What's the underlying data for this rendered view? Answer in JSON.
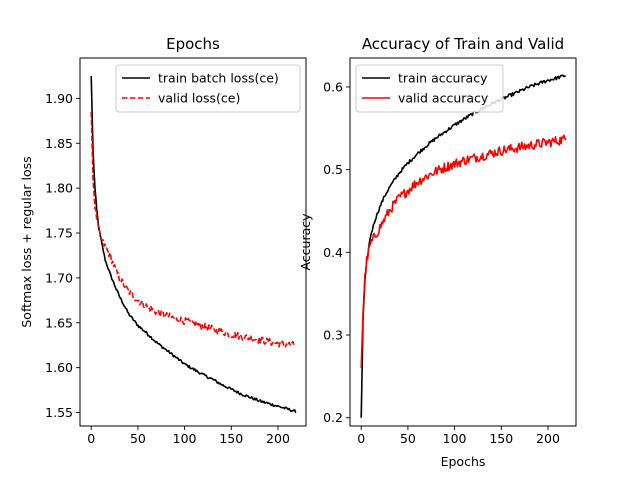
{
  "chart_data": [
    {
      "type": "line",
      "title": "Epochs",
      "xlabel": "",
      "ylabel": "Softmax loss + regular loss",
      "xlim": [
        -12,
        230
      ],
      "ylim": [
        1.535,
        1.945
      ],
      "xticks": [
        0,
        50,
        100,
        150,
        200
      ],
      "yticks": [
        1.55,
        1.6,
        1.65,
        1.7,
        1.75,
        1.8,
        1.85,
        1.9
      ],
      "legend_position": "top-right",
      "series": [
        {
          "name": "train batch loss(ce)",
          "color": "#000000",
          "dash": "solid",
          "points": [
            [
              0,
              1.925
            ],
            [
              2,
              1.84
            ],
            [
              4,
              1.8
            ],
            [
              6,
              1.775
            ],
            [
              8,
              1.757
            ],
            [
              10,
              1.745
            ],
            [
              15,
              1.72
            ],
            [
              20,
              1.705
            ],
            [
              25,
              1.692
            ],
            [
              30,
              1.68
            ],
            [
              40,
              1.66
            ],
            [
              50,
              1.647
            ],
            [
              60,
              1.638
            ],
            [
              70,
              1.628
            ],
            [
              80,
              1.62
            ],
            [
              90,
              1.612
            ],
            [
              100,
              1.604
            ],
            [
              110,
              1.598
            ],
            [
              120,
              1.592
            ],
            [
              130,
              1.587
            ],
            [
              140,
              1.581
            ],
            [
              150,
              1.576
            ],
            [
              160,
              1.571
            ],
            [
              170,
              1.567
            ],
            [
              180,
              1.563
            ],
            [
              190,
              1.56
            ],
            [
              200,
              1.557
            ],
            [
              210,
              1.554
            ],
            [
              219,
              1.551
            ]
          ],
          "noise": 0.0015
        },
        {
          "name": "valid loss(ce)",
          "color": "#ff0000",
          "dash": "dashed",
          "points": [
            [
              0,
              1.885
            ],
            [
              2,
              1.81
            ],
            [
              4,
              1.78
            ],
            [
              6,
              1.765
            ],
            [
              8,
              1.752
            ],
            [
              10,
              1.745
            ],
            [
              15,
              1.735
            ],
            [
              20,
              1.725
            ],
            [
              25,
              1.712
            ],
            [
              30,
              1.7
            ],
            [
              40,
              1.685
            ],
            [
              50,
              1.675
            ],
            [
              60,
              1.668
            ],
            [
              70,
              1.662
            ],
            [
              80,
              1.658
            ],
            [
              90,
              1.655
            ],
            [
              100,
              1.652
            ],
            [
              110,
              1.649
            ],
            [
              120,
              1.646
            ],
            [
              130,
              1.643
            ],
            [
              140,
              1.64
            ],
            [
              150,
              1.637
            ],
            [
              160,
              1.635
            ],
            [
              170,
              1.633
            ],
            [
              180,
              1.631
            ],
            [
              190,
              1.629
            ],
            [
              200,
              1.627
            ],
            [
              210,
              1.626
            ],
            [
              219,
              1.625
            ]
          ],
          "noise": 0.004
        }
      ]
    },
    {
      "type": "line",
      "title": "Accuracy of Train and Valid",
      "xlabel": "Epochs",
      "ylabel": "Accuracy",
      "xlim": [
        -12,
        230
      ],
      "ylim": [
        0.19,
        0.635
      ],
      "xticks": [
        0,
        50,
        100,
        150,
        200
      ],
      "yticks": [
        0.2,
        0.3,
        0.4,
        0.5,
        0.6
      ],
      "legend_position": "top-left",
      "series": [
        {
          "name": "train accuracy",
          "color": "#000000",
          "dash": "solid",
          "points": [
            [
              0,
              0.2
            ],
            [
              1,
              0.26
            ],
            [
              2,
              0.32
            ],
            [
              4,
              0.365
            ],
            [
              6,
              0.39
            ],
            [
              8,
              0.405
            ],
            [
              10,
              0.42
            ],
            [
              15,
              0.44
            ],
            [
              20,
              0.455
            ],
            [
              25,
              0.468
            ],
            [
              30,
              0.478
            ],
            [
              40,
              0.495
            ],
            [
              50,
              0.508
            ],
            [
              60,
              0.519
            ],
            [
              70,
              0.529
            ],
            [
              80,
              0.538
            ],
            [
              90,
              0.546
            ],
            [
              100,
              0.554
            ],
            [
              110,
              0.561
            ],
            [
              120,
              0.568
            ],
            [
              130,
              0.574
            ],
            [
              140,
              0.58
            ],
            [
              150,
              0.585
            ],
            [
              160,
              0.59
            ],
            [
              170,
              0.595
            ],
            [
              180,
              0.6
            ],
            [
              190,
              0.604
            ],
            [
              200,
              0.608
            ],
            [
              210,
              0.611
            ],
            [
              219,
              0.614
            ]
          ],
          "noise": 0.002
        },
        {
          "name": "valid accuracy",
          "color": "#ff0000",
          "dash": "solid",
          "points": [
            [
              0,
              0.26
            ],
            [
              2,
              0.33
            ],
            [
              4,
              0.37
            ],
            [
              6,
              0.39
            ],
            [
              8,
              0.4
            ],
            [
              10,
              0.41
            ],
            [
              15,
              0.42
            ],
            [
              20,
              0.43
            ],
            [
              25,
              0.44
            ],
            [
              30,
              0.45
            ],
            [
              40,
              0.465
            ],
            [
              50,
              0.475
            ],
            [
              60,
              0.485
            ],
            [
              70,
              0.492
            ],
            [
              80,
              0.498
            ],
            [
              90,
              0.503
            ],
            [
              100,
              0.507
            ],
            [
              110,
              0.511
            ],
            [
              120,
              0.514
            ],
            [
              130,
              0.517
            ],
            [
              140,
              0.52
            ],
            [
              150,
              0.523
            ],
            [
              160,
              0.525
            ],
            [
              170,
              0.527
            ],
            [
              180,
              0.529
            ],
            [
              190,
              0.531
            ],
            [
              200,
              0.533
            ],
            [
              210,
              0.535
            ],
            [
              219,
              0.537
            ]
          ],
          "noise": 0.006
        }
      ]
    }
  ]
}
